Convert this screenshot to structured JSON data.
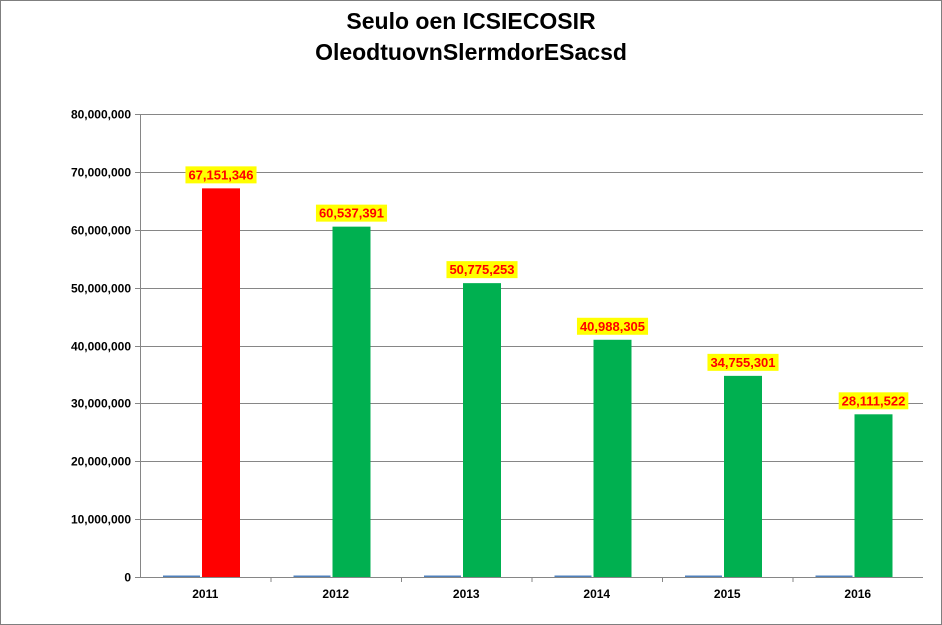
{
  "chart_data": {
    "type": "bar",
    "title_lines": [
      "Seulo oen ICSIECOSIR",
      "OleodtuovnSlermdorESacsd"
    ],
    "categories": [
      "2011",
      "2012",
      "2013",
      "2014",
      "2015",
      "2016"
    ],
    "series": [
      {
        "values": [
          0,
          0,
          0,
          0,
          0,
          0
        ],
        "color": "#4f81bd"
      },
      {
        "values": [
          67151346,
          60537391,
          50775253,
          40988305,
          34755301,
          28111522
        ],
        "color": "#00b050",
        "highlight_color": "#ff0000",
        "highlight_index": 0
      }
    ],
    "data_labels": [
      "67,151,346",
      "60,537,391",
      "50,775,253",
      "40,988,305",
      "34,755,301",
      "28,111,522"
    ],
    "data_label_style": {
      "text_color": "#ff0000",
      "background": "#ffff00"
    },
    "ylim": [
      0,
      80000000
    ],
    "yticks": [
      0,
      10000000,
      20000000,
      30000000,
      40000000,
      50000000,
      60000000,
      70000000,
      80000000
    ],
    "ytick_labels": [
      "0",
      "10,000,000",
      "20,000,000",
      "30,000,000",
      "40,000,000",
      "50,000,000",
      "60,000,000",
      "70,000,000",
      "80,000,000"
    ],
    "xlabel": "",
    "ylabel": "",
    "grid": true,
    "legend": "none"
  }
}
